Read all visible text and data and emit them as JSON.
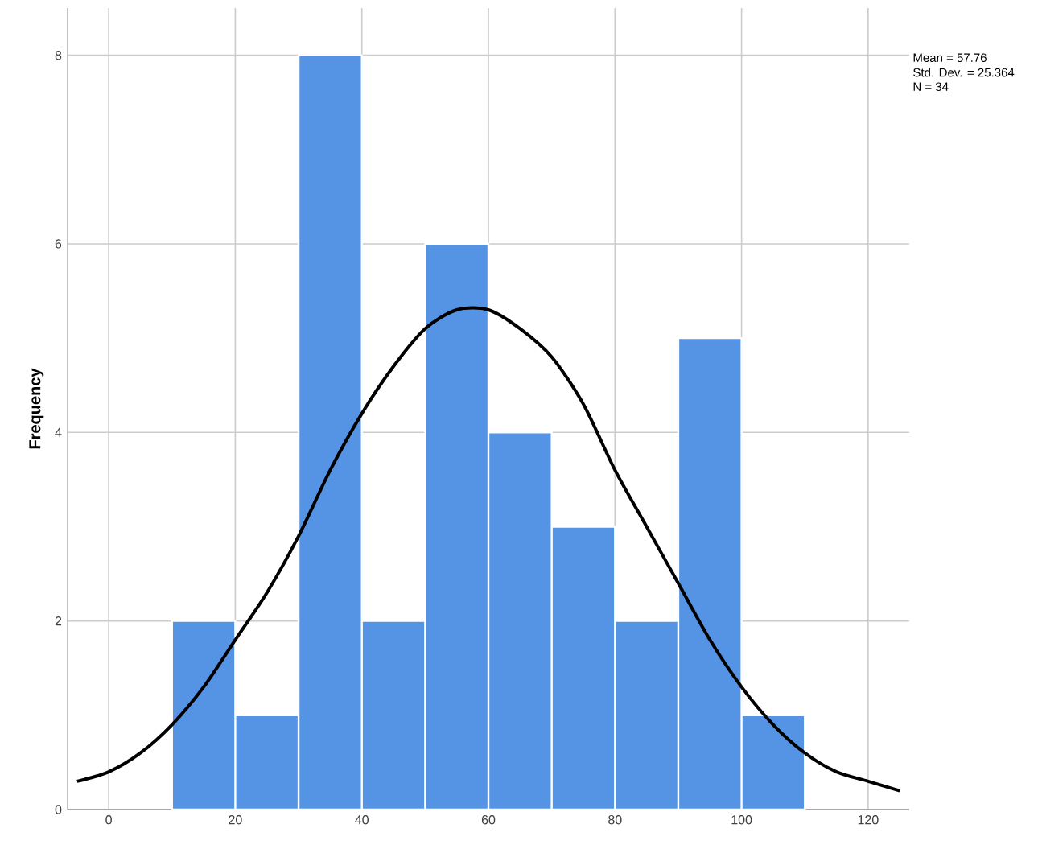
{
  "chart_data": {
    "type": "histogram",
    "ylabel": "Frequency",
    "bins": [
      10,
      20,
      30,
      40,
      50,
      60,
      70,
      80,
      90,
      100,
      110
    ],
    "values": [
      2,
      1,
      8,
      2,
      6,
      4,
      3,
      2,
      5,
      1
    ],
    "color": "#5594e4",
    "series": [
      {
        "type": "line",
        "color": "#000000",
        "x": [
          -5,
          0,
          5,
          10,
          15,
          20,
          25,
          30,
          35,
          40,
          45,
          50,
          55,
          60,
          65,
          70,
          75,
          80,
          85,
          90,
          95,
          100,
          105,
          110,
          115,
          120,
          125
        ],
        "values": [
          0.3,
          0.4,
          0.6,
          0.9,
          1.3,
          1.8,
          2.3,
          2.9,
          3.6,
          4.2,
          4.7,
          5.1,
          5.3,
          5.3,
          5.1,
          4.8,
          4.3,
          3.6,
          3.0,
          2.4,
          1.8,
          1.3,
          0.9,
          0.6,
          0.4,
          0.3,
          0.2
        ]
      }
    ],
    "xlim": [
      -6.5,
      126.5
    ],
    "ylim": [
      0,
      8.5
    ],
    "xticks": [
      0,
      20,
      40,
      60,
      80,
      100,
      120
    ],
    "yticks": [
      0,
      2,
      4,
      6,
      8
    ],
    "grid": true,
    "annotations": [
      "Mean = 57.76",
      "Std. Dev. = 25.364",
      "N = 34"
    ]
  }
}
